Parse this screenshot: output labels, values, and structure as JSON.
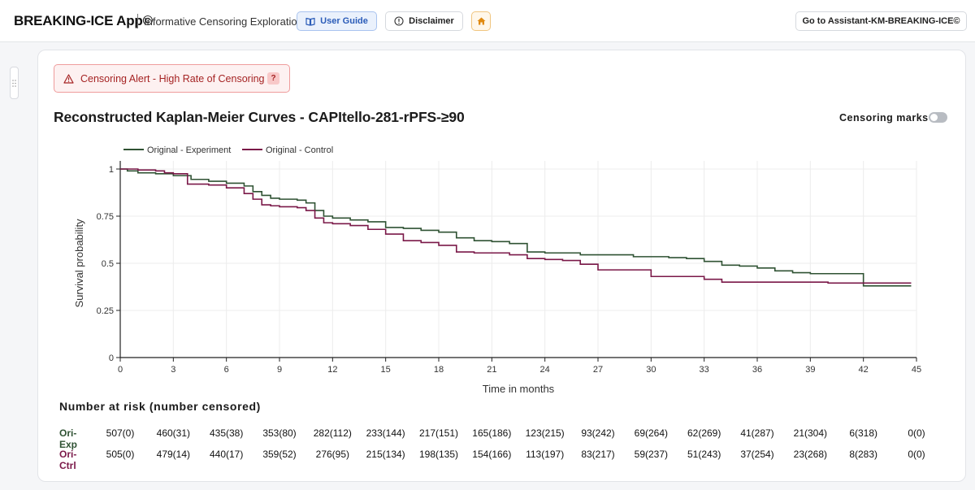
{
  "app": {
    "title": "BREAKING-ICE App©",
    "subtitle": "Informative Censoring Exploration"
  },
  "toolbar": {
    "user_guide": "User Guide",
    "disclaimer": "Disclaimer",
    "assistant": "Go to Assistant-KM-BREAKING-ICE©"
  },
  "alert": {
    "text": "Censoring Alert - High Rate of Censoring",
    "help": "?"
  },
  "chart_header": {
    "title": "Reconstructed Kaplan-Meier Curves - CAPItello-281-rPFS-≥90",
    "censoring_marks_label": "Censoring marks",
    "censoring_marks_on": false
  },
  "colors": {
    "experiment": "#2f5233",
    "control": "#7a1848",
    "accent": "#2b5cb8",
    "alert": "#a52323"
  },
  "chart_data": {
    "type": "line",
    "xlabel": "Time in months",
    "ylabel": "Survival probability",
    "xlim": [
      0,
      45
    ],
    "ylim": [
      0,
      1.0
    ],
    "xticks": [
      0,
      3,
      6,
      9,
      12,
      15,
      18,
      21,
      24,
      27,
      30,
      33,
      36,
      39,
      42,
      45
    ],
    "yticks": [
      0,
      0.25,
      0.5,
      0.75,
      1
    ],
    "ytick_labels": [
      "0",
      "0.25",
      "0.5",
      "0.75",
      "1"
    ],
    "grid": true,
    "legend_position": "top-left",
    "series": [
      {
        "name": "Original - Experiment",
        "color": "#2f5233",
        "x": [
          0,
          0.4,
          1.0,
          2.0,
          3.0,
          4.0,
          5.0,
          6.0,
          7.0,
          7.5,
          8.0,
          8.5,
          9.0,
          10.0,
          10.5,
          11.0,
          11.5,
          12.0,
          13.0,
          14.0,
          15.0,
          16.0,
          17.0,
          18.0,
          19.0,
          20.0,
          21.0,
          22.0,
          23.0,
          24.0,
          25.0,
          26.0,
          27.0,
          28.0,
          29.0,
          30.0,
          31.0,
          32.0,
          33.0,
          34.0,
          35.0,
          36.0,
          37.0,
          38.0,
          39.0,
          40.0,
          41.0,
          42.0,
          43.0,
          44.0,
          44.7
        ],
        "y": [
          1.0,
          0.99,
          0.98,
          0.975,
          0.965,
          0.945,
          0.935,
          0.925,
          0.91,
          0.88,
          0.86,
          0.845,
          0.84,
          0.835,
          0.82,
          0.78,
          0.75,
          0.74,
          0.73,
          0.72,
          0.69,
          0.685,
          0.675,
          0.665,
          0.635,
          0.62,
          0.615,
          0.605,
          0.56,
          0.555,
          0.555,
          0.545,
          0.545,
          0.545,
          0.535,
          0.535,
          0.53,
          0.525,
          0.51,
          0.49,
          0.485,
          0.475,
          0.46,
          0.45,
          0.445,
          0.445,
          0.445,
          0.38,
          0.38,
          0.38,
          0.38
        ]
      },
      {
        "name": "Original - Control",
        "color": "#7a1848",
        "x": [
          0,
          1.0,
          2.0,
          2.5,
          3.0,
          3.8,
          5.0,
          6.0,
          7.0,
          7.5,
          8.0,
          8.5,
          9.0,
          10.0,
          10.5,
          11.0,
          11.5,
          12.0,
          13.0,
          14.0,
          15.0,
          16.0,
          17.0,
          18.0,
          19.0,
          20.0,
          21.0,
          22.0,
          23.0,
          24.0,
          25.0,
          26.0,
          27.0,
          28.0,
          29.0,
          30.0,
          31.0,
          32.0,
          33.0,
          34.0,
          35.0,
          36.0,
          37.0,
          38.0,
          39.0,
          40.0,
          41.0,
          42.0,
          43.0,
          44.0,
          44.7
        ],
        "y": [
          1.0,
          0.995,
          0.99,
          0.98,
          0.975,
          0.92,
          0.915,
          0.9,
          0.87,
          0.84,
          0.81,
          0.805,
          0.8,
          0.795,
          0.78,
          0.74,
          0.715,
          0.71,
          0.7,
          0.68,
          0.655,
          0.62,
          0.61,
          0.595,
          0.56,
          0.555,
          0.555,
          0.545,
          0.525,
          0.52,
          0.515,
          0.495,
          0.465,
          0.465,
          0.465,
          0.43,
          0.43,
          0.43,
          0.415,
          0.4,
          0.4,
          0.4,
          0.4,
          0.4,
          0.4,
          0.395,
          0.395,
          0.395,
          0.395,
          0.395,
          0.395
        ]
      }
    ]
  },
  "risk_table": {
    "title": "Number at risk (number censored)",
    "rows": [
      {
        "label": "Ori-Exp",
        "color": "#2f5233",
        "cells": [
          "507(0)",
          "460(31)",
          "435(38)",
          "353(80)",
          "282(112)",
          "233(144)",
          "217(151)",
          "165(186)",
          "123(215)",
          "93(242)",
          "69(264)",
          "62(269)",
          "41(287)",
          "21(304)",
          "6(318)",
          "0(0)"
        ]
      },
      {
        "label": "Ori-Ctrl",
        "color": "#7a1848",
        "cells": [
          "505(0)",
          "479(14)",
          "440(17)",
          "359(52)",
          "276(95)",
          "215(134)",
          "198(135)",
          "154(166)",
          "113(197)",
          "83(217)",
          "59(237)",
          "51(243)",
          "37(254)",
          "23(268)",
          "8(283)",
          "0(0)"
        ]
      }
    ]
  }
}
